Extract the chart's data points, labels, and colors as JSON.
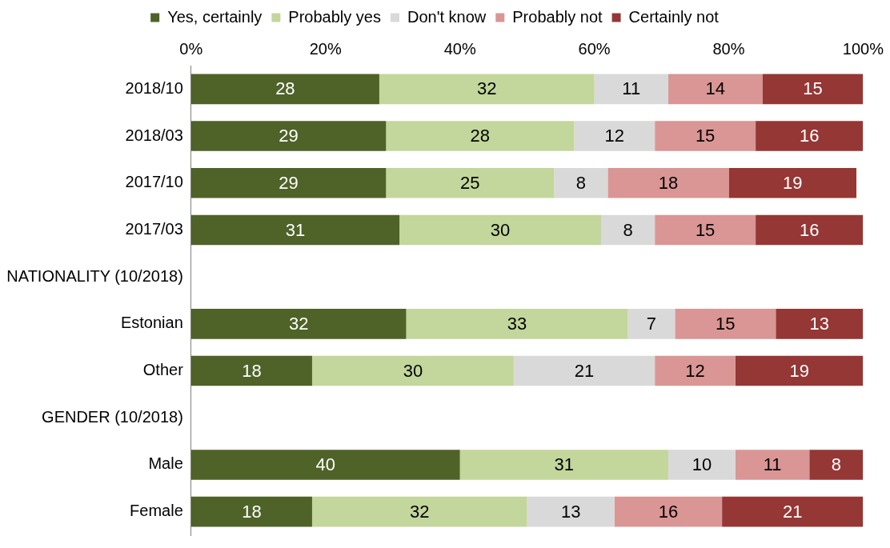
{
  "chart_data": {
    "type": "bar",
    "orientation": "horizontal",
    "stacked": true,
    "data_labels": true,
    "legend": "top",
    "grid": false,
    "categories": [
      "2018/10",
      "2018/03",
      "2017/10",
      "2017/03",
      "NATIONALITY (10/2018)",
      "Estonian",
      "Other",
      "GENDER (10/2018)",
      "Male",
      "Female"
    ],
    "xlim": [
      0,
      100
    ],
    "xticks": [
      {
        "value": 0,
        "label": "0%"
      },
      {
        "value": 20,
        "label": "20%"
      },
      {
        "value": 40,
        "label": "40%"
      },
      {
        "value": 60,
        "label": "60%"
      },
      {
        "value": 80,
        "label": "80%"
      },
      {
        "value": 100,
        "label": "100%"
      }
    ],
    "series": [
      {
        "name": "Yes, certainly",
        "color": "#4f6228",
        "values": [
          28,
          29,
          29,
          31,
          null,
          32,
          18,
          null,
          40,
          18
        ]
      },
      {
        "name": "Probably yes",
        "color": "#c3d69b",
        "values": [
          32,
          28,
          25,
          30,
          null,
          33,
          30,
          null,
          31,
          32
        ]
      },
      {
        "name": "Don't know",
        "color": "#d9d9d9",
        "values": [
          11,
          12,
          8,
          8,
          null,
          7,
          21,
          null,
          10,
          13
        ]
      },
      {
        "name": "Probably not",
        "color": "#d99694",
        "values": [
          14,
          15,
          18,
          15,
          null,
          15,
          12,
          null,
          11,
          16
        ]
      },
      {
        "name": "Certainly not",
        "color": "#953735",
        "values": [
          15,
          16,
          19,
          16,
          null,
          13,
          19,
          null,
          8,
          21
        ]
      }
    ]
  }
}
